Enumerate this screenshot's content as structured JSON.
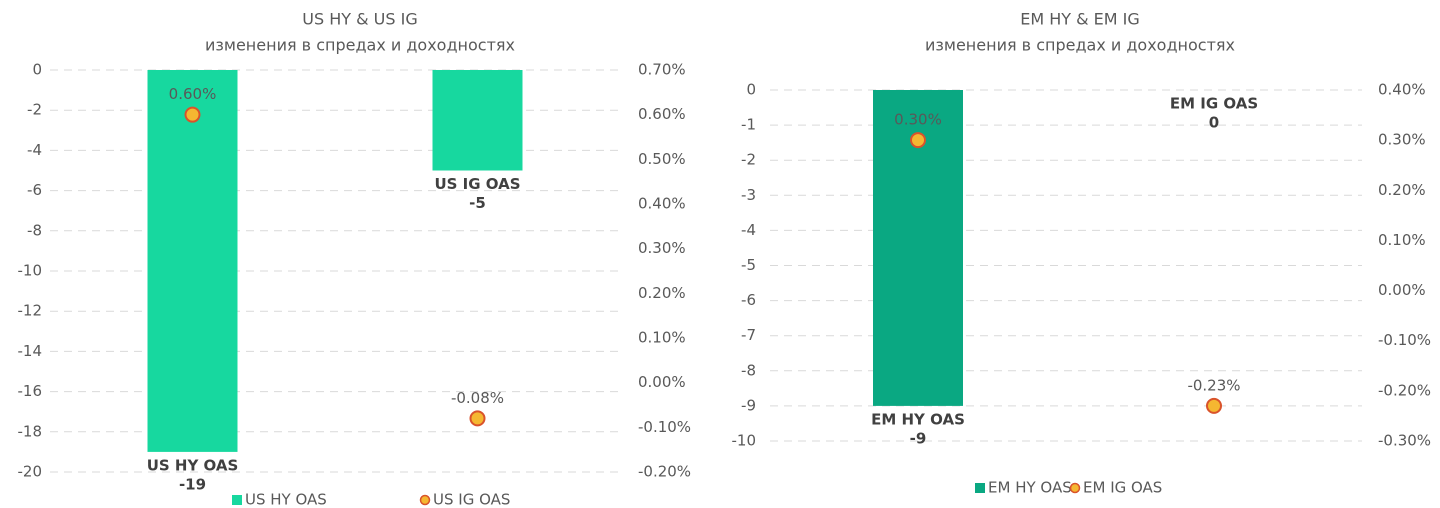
{
  "chart_data": [
    {
      "type": "bar",
      "title": "US HY & US IG",
      "subtitle": "изменения в спредах и доходностях",
      "categories": [
        "US HY OAS",
        "US IG OAS"
      ],
      "series": [
        {
          "name": "US HY OAS",
          "type": "bar",
          "color": "#17d89f",
          "values": [
            -19,
            -5
          ]
        },
        {
          "name": "US IG OAS",
          "type": "scatter",
          "axis": "y2",
          "color": "#f5b731",
          "values": [
            0.6,
            -0.08
          ],
          "value_labels": [
            "0.60%",
            "-0.08%"
          ]
        }
      ],
      "ylim": [
        -20,
        0
      ],
      "yticks": [
        0,
        -2,
        -4,
        -6,
        -8,
        -10,
        -12,
        -14,
        -16,
        -18,
        -20
      ],
      "y2lim": [
        -0.2,
        0.7
      ],
      "y2ticks": [
        {
          "value": 0.7,
          "label": "0.70%"
        },
        {
          "value": 0.6,
          "label": "0.60%"
        },
        {
          "value": 0.5,
          "label": "0.50%"
        },
        {
          "value": 0.4,
          "label": "0.40%"
        },
        {
          "value": 0.3,
          "label": "0.30%"
        },
        {
          "value": 0.2,
          "label": "0.20%"
        },
        {
          "value": 0.1,
          "label": "0.10%"
        },
        {
          "value": 0,
          "label": "0.00%"
        },
        {
          "value": -0.1,
          "label": "-0.10%"
        },
        {
          "value": -0.2,
          "label": "-0.20%"
        }
      ],
      "grid": true,
      "legend": "bottom"
    },
    {
      "type": "bar",
      "title": "EM HY & EM IG",
      "subtitle": "изменения в спредах и доходностях",
      "categories": [
        "EM HY OAS",
        "EM IG OAS"
      ],
      "series": [
        {
          "name": "EM HY OAS",
          "type": "bar",
          "color": "#0aa882",
          "values": [
            -9,
            0
          ]
        },
        {
          "name": "EM IG OAS",
          "type": "scatter",
          "axis": "y2",
          "color": "#f5b731",
          "values": [
            0.3,
            -0.23
          ],
          "value_labels": [
            "0.30%",
            "-0.23%"
          ]
        }
      ],
      "ylim": [
        -10,
        0
      ],
      "yticks": [
        0,
        -1,
        -2,
        -3,
        -4,
        -5,
        -6,
        -7,
        -8,
        -9,
        -10
      ],
      "y2lim": [
        -0.3,
        0.4
      ],
      "y2ticks": [
        {
          "value": 0.4,
          "label": "0.40%"
        },
        {
          "value": 0.3,
          "label": "0.30%"
        },
        {
          "value": 0.2,
          "label": "0.20%"
        },
        {
          "value": 0.1,
          "label": "0.10%"
        },
        {
          "value": 0,
          "label": "0.00%"
        },
        {
          "value": -0.1,
          "label": "-0.10%"
        },
        {
          "value": -0.2,
          "label": "-0.20%"
        },
        {
          "value": -0.3,
          "label": "-0.30%"
        }
      ],
      "grid": true,
      "legend": "bottom"
    }
  ]
}
